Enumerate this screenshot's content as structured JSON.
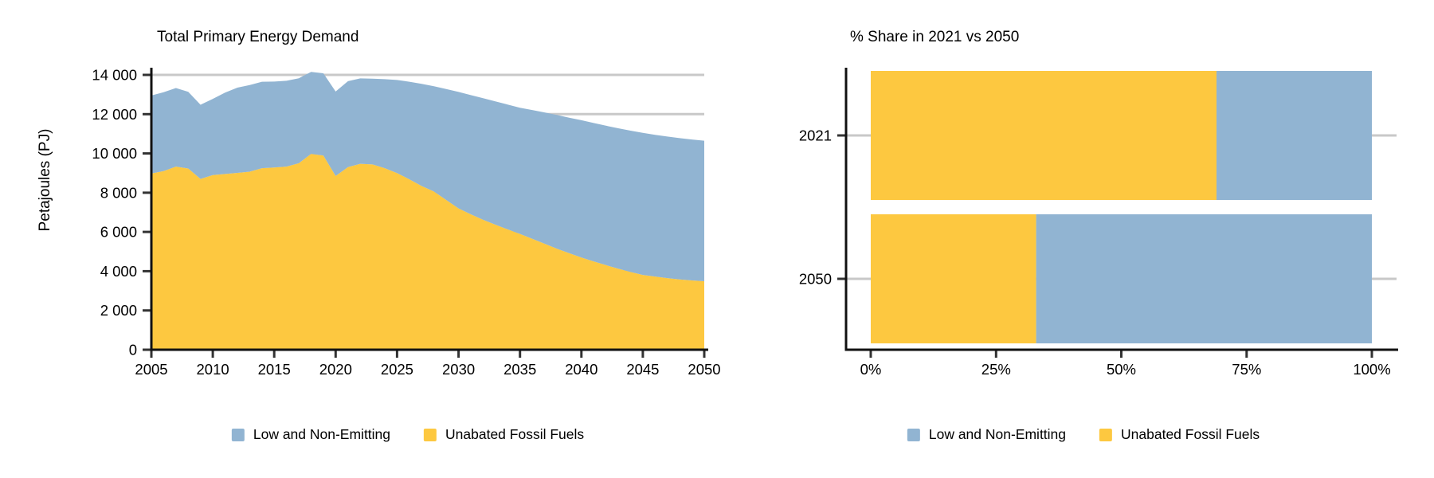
{
  "page": {
    "background": "#ffffff"
  },
  "colors": {
    "blue": "#91B4D2",
    "yellow": "#FDC840",
    "gridline": "#C8C8C8",
    "axis": "#111111",
    "tick": "#333333",
    "text": "#000000"
  },
  "legend": {
    "items": [
      {
        "label": "Low and Non-Emitting",
        "color": "blue"
      },
      {
        "label": "Unabated Fossil Fuels",
        "color": "yellow"
      }
    ]
  },
  "chart_data": [
    {
      "type": "area",
      "stacked": true,
      "title": "Total Primary Energy Demand",
      "xlabel": "",
      "ylabel": "Petajoules (PJ)",
      "ylim": [
        0,
        14000
      ],
      "xlim": [
        2005,
        2050
      ],
      "grid": "horizontal",
      "legend_position": "bottom",
      "x": [
        2005,
        2006,
        2007,
        2008,
        2009,
        2010,
        2011,
        2012,
        2013,
        2014,
        2015,
        2016,
        2017,
        2018,
        2019,
        2020,
        2021,
        2022,
        2023,
        2024,
        2025,
        2026,
        2027,
        2028,
        2029,
        2030,
        2031,
        2032,
        2033,
        2034,
        2035,
        2036,
        2037,
        2038,
        2039,
        2040,
        2041,
        2042,
        2043,
        2044,
        2045,
        2046,
        2047,
        2048,
        2049,
        2050
      ],
      "series": [
        {
          "name": "Unabated Fossil Fuels",
          "values": [
            8980,
            9100,
            9330,
            9230,
            8700,
            8900,
            8950,
            9010,
            9070,
            9250,
            9280,
            9330,
            9500,
            9980,
            9890,
            8850,
            9300,
            9470,
            9440,
            9250,
            9000,
            8680,
            8340,
            8060,
            7630,
            7200,
            6900,
            6620,
            6370,
            6130,
            5900,
            5650,
            5400,
            5150,
            4920,
            4700,
            4500,
            4310,
            4130,
            3960,
            3810,
            3730,
            3650,
            3580,
            3530,
            3490
          ]
        },
        {
          "name": "Low and Non-Emitting",
          "values": [
            3970,
            4020,
            4000,
            3910,
            3780,
            3880,
            4150,
            4340,
            4410,
            4400,
            4380,
            4370,
            4330,
            4170,
            4190,
            4300,
            4380,
            4350,
            4370,
            4530,
            4740,
            4970,
            5200,
            5360,
            5650,
            5930,
            6070,
            6190,
            6280,
            6360,
            6430,
            6560,
            6690,
            6810,
            6900,
            6990,
            7050,
            7100,
            7150,
            7200,
            7240,
            7220,
            7210,
            7200,
            7180,
            7160
          ]
        }
      ],
      "y_ticks": {
        "values": [
          0,
          2000,
          4000,
          6000,
          8000,
          10000,
          12000,
          14000
        ],
        "labels": [
          "0",
          "2 000",
          "4 000",
          "6 000",
          "8 000",
          "10 000",
          "12 000",
          "14 000"
        ]
      },
      "x_ticks": [
        2005,
        2010,
        2015,
        2020,
        2025,
        2030,
        2035,
        2040,
        2045,
        2050
      ]
    },
    {
      "type": "bar",
      "orientation": "horizontal",
      "stacked": true,
      "title": "% Share in 2021 vs 2050",
      "xlabel": "",
      "ylabel": "",
      "xlim": [
        0,
        100
      ],
      "grid": "horizontal",
      "legend_position": "bottom",
      "categories": [
        "2021",
        "2050"
      ],
      "series": [
        {
          "name": "Unabated Fossil Fuels",
          "values": [
            69,
            33
          ]
        },
        {
          "name": "Low and Non-Emitting",
          "values": [
            31,
            67
          ]
        }
      ],
      "x_tick_values": [
        0,
        25,
        50,
        75,
        100
      ],
      "x_ticks": [
        "0%",
        "25%",
        "50%",
        "75%",
        "100%"
      ]
    }
  ]
}
